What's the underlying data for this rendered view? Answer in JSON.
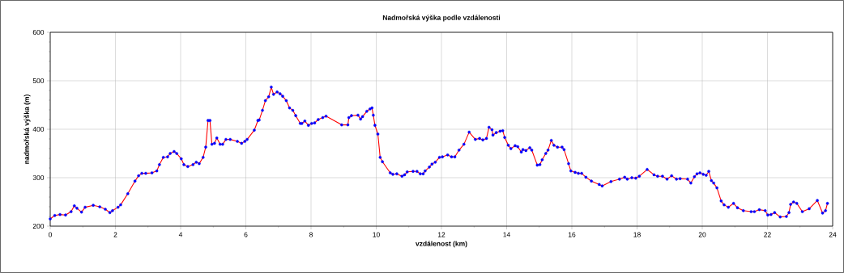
{
  "chart_data": {
    "type": "line",
    "title": "Nadmořská výška podle vzdálenosti",
    "xlabel": "vzdálenost (km)",
    "ylabel": "nadmořská výška (m)",
    "x": [
      0,
      0.14,
      0.3,
      0.47,
      0.64,
      0.74,
      0.82,
      0.96,
      1.07,
      1.32,
      1.52,
      1.69,
      1.83,
      1.91,
      2.08,
      2.16,
      2.38,
      2.6,
      2.71,
      2.81,
      2.93,
      3.12,
      3.27,
      3.35,
      3.47,
      3.6,
      3.68,
      3.8,
      3.88,
      4.02,
      4.1,
      4.22,
      4.38,
      4.48,
      4.57,
      4.69,
      4.77,
      4.84,
      4.9,
      4.96,
      5.04,
      5.11,
      5.21,
      5.29,
      5.39,
      5.52,
      5.74,
      5.87,
      5.97,
      6.04,
      6.26,
      6.37,
      6.41,
      6.51,
      6.6,
      6.7,
      6.78,
      6.85,
      6.96,
      7.05,
      7.13,
      7.24,
      7.34,
      7.44,
      7.53,
      7.67,
      7.72,
      7.81,
      7.92,
      8.02,
      8.11,
      8.22,
      8.36,
      8.46,
      8.94,
      9.13,
      9.16,
      9.24,
      9.44,
      9.52,
      9.58,
      9.71,
      9.81,
      9.87,
      9.91,
      9.96,
      10.05,
      10.12,
      10.19,
      10.43,
      10.51,
      10.63,
      10.79,
      10.87,
      10.95,
      11.13,
      11.25,
      11.35,
      11.44,
      11.5,
      11.63,
      11.71,
      11.81,
      11.94,
      12.03,
      12.19,
      12.31,
      12.41,
      12.54,
      12.69,
      12.85,
      13.04,
      13.17,
      13.27,
      13.38,
      13.46,
      13.55,
      13.58,
      13.68,
      13.8,
      13.88,
      13.94,
      14.05,
      14.13,
      14.26,
      14.34,
      14.45,
      14.5,
      14.59,
      14.71,
      14.77,
      14.94,
      15.02,
      15.09,
      15.2,
      15.27,
      15.37,
      15.45,
      15.56,
      15.7,
      15.76,
      15.9,
      15.97,
      16.1,
      16.2,
      16.3,
      16.43,
      16.6,
      16.84,
      16.93,
      17.2,
      17.46,
      17.62,
      17.7,
      17.84,
      17.96,
      18.07,
      18.31,
      18.52,
      18.63,
      18.78,
      18.92,
      19.06,
      19.21,
      19.32,
      19.55,
      19.65,
      19.76,
      19.84,
      19.93,
      20.03,
      20.12,
      20.2,
      20.28,
      20.35,
      20.45,
      20.58,
      20.67,
      20.8,
      20.96,
      21.08,
      21.26,
      21.5,
      21.6,
      21.75,
      21.93,
      22.01,
      22.11,
      22.22,
      22.39,
      22.58,
      22.66,
      22.71,
      22.8,
      22.9,
      23.07,
      23.28,
      23.53,
      23.69,
      23.78,
      23.84
    ],
    "series": [
      {
        "color": "#ff0000",
        "values": [
          215,
          222,
          224,
          223,
          230,
          242,
          237,
          229,
          239,
          243,
          240,
          235,
          228,
          232,
          239,
          244,
          267,
          293,
          304,
          309,
          309,
          310,
          314,
          327,
          342,
          343,
          350,
          354,
          350,
          339,
          327,
          323,
          327,
          332,
          329,
          342,
          363,
          418,
          418,
          369,
          371,
          382,
          369,
          369,
          379,
          379,
          375,
          371,
          375,
          379,
          398,
          418,
          419,
          439,
          459,
          467,
          487,
          472,
          477,
          473,
          468,
          459,
          444,
          439,
          428,
          412,
          412,
          417,
          408,
          412,
          413,
          420,
          424,
          427,
          409,
          409,
          424,
          428,
          429,
          421,
          426,
          437,
          442,
          444,
          429,
          408,
          390,
          342,
          333,
          310,
          307,
          308,
          303,
          306,
          312,
          313,
          313,
          308,
          308,
          314,
          322,
          328,
          332,
          342,
          343,
          347,
          343,
          343,
          357,
          369,
          394,
          379,
          381,
          378,
          381,
          404,
          399,
          388,
          393,
          396,
          397,
          383,
          367,
          360,
          366,
          364,
          353,
          358,
          356,
          362,
          357,
          326,
          327,
          337,
          350,
          357,
          377,
          367,
          363,
          363,
          358,
          329,
          314,
          311,
          309,
          309,
          301,
          293,
          286,
          283,
          292,
          297,
          301,
          297,
          300,
          299,
          303,
          317,
          306,
          303,
          303,
          297,
          304,
          297,
          298,
          297,
          289,
          302,
          308,
          310,
          307,
          305,
          313,
          294,
          289,
          279,
          252,
          244,
          239,
          247,
          238,
          232,
          230,
          230,
          234,
          232,
          223,
          224,
          228,
          219,
          220,
          228,
          245,
          250,
          247,
          230,
          236,
          253,
          227,
          232,
          247
        ]
      },
      {
        "type": "scatter",
        "color": "#0000ff",
        "marker": "circle",
        "values": [
          215,
          222,
          224,
          223,
          230,
          242,
          237,
          229,
          239,
          243,
          240,
          235,
          228,
          232,
          239,
          244,
          267,
          293,
          304,
          309,
          309,
          310,
          314,
          327,
          342,
          343,
          350,
          354,
          350,
          339,
          327,
          323,
          327,
          332,
          329,
          342,
          363,
          418,
          418,
          369,
          371,
          382,
          369,
          369,
          379,
          379,
          375,
          371,
          375,
          379,
          398,
          418,
          419,
          439,
          459,
          467,
          487,
          472,
          477,
          473,
          468,
          459,
          444,
          439,
          428,
          412,
          412,
          417,
          408,
          412,
          413,
          420,
          424,
          427,
          409,
          409,
          424,
          428,
          429,
          421,
          426,
          437,
          442,
          444,
          429,
          408,
          390,
          342,
          333,
          310,
          307,
          308,
          303,
          306,
          312,
          313,
          313,
          308,
          308,
          314,
          322,
          328,
          332,
          342,
          343,
          347,
          343,
          343,
          357,
          369,
          394,
          379,
          381,
          378,
          381,
          404,
          399,
          388,
          393,
          396,
          397,
          383,
          367,
          360,
          366,
          364,
          353,
          358,
          356,
          362,
          357,
          326,
          327,
          337,
          350,
          357,
          377,
          367,
          363,
          363,
          358,
          329,
          314,
          311,
          309,
          309,
          301,
          293,
          286,
          283,
          292,
          297,
          301,
          297,
          300,
          299,
          303,
          317,
          306,
          303,
          303,
          297,
          304,
          297,
          298,
          297,
          289,
          302,
          308,
          310,
          307,
          305,
          313,
          294,
          289,
          279,
          252,
          244,
          239,
          247,
          238,
          232,
          230,
          230,
          234,
          232,
          223,
          224,
          228,
          219,
          220,
          228,
          245,
          250,
          247,
          230,
          236,
          253,
          227,
          232,
          247
        ]
      }
    ],
    "xlim": [
      0,
      24
    ],
    "ylim": [
      200,
      600
    ],
    "xticks": [
      0,
      2,
      4,
      6,
      8,
      10,
      12,
      14,
      16,
      18,
      20,
      22,
      24
    ],
    "yticks": [
      200,
      300,
      400,
      500,
      600
    ],
    "grid": true
  }
}
